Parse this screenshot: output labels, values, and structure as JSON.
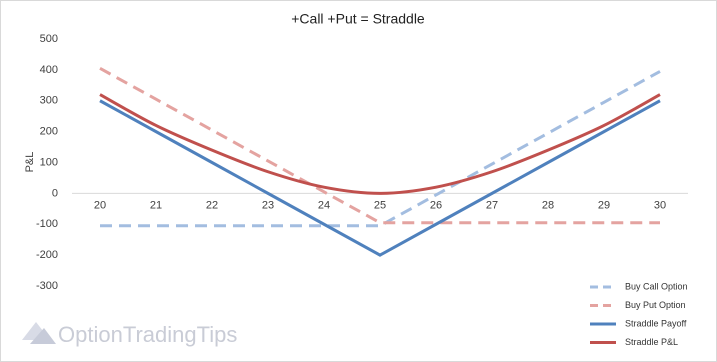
{
  "chart_data": {
    "type": "line",
    "title": "+Call +Put = Straddle",
    "y_label": "P&L",
    "categories": [
      "20",
      "21",
      "22",
      "23",
      "24",
      "25",
      "26",
      "27",
      "28",
      "29",
      "30"
    ],
    "series": [
      {
        "name": "Buy Call Option",
        "color": "#a3bde0",
        "dashed": true,
        "values": [
          -105,
          -105,
          -105,
          -105,
          -105,
          -105,
          -5,
          95,
          195,
          295,
          395
        ]
      },
      {
        "name": "Buy Put Option",
        "color": "#e4a3a0",
        "dashed": true,
        "values": [
          405,
          305,
          205,
          105,
          5,
          -95,
          -95,
          -95,
          -95,
          -95,
          -95
        ]
      },
      {
        "name": "Straddle Payoff",
        "color": "#4f81bd",
        "dashed": false,
        "values": [
          300,
          200,
          100,
          0,
          -100,
          -200,
          -100,
          0,
          100,
          200,
          300
        ]
      },
      {
        "name": "Straddle P&L",
        "color": "#c0504d",
        "dashed": false,
        "smooth": true,
        "values": [
          320,
          220,
          140,
          70,
          20,
          0,
          20,
          70,
          140,
          220,
          320
        ]
      }
    ],
    "ylim": [
      -300,
      500
    ],
    "yticks": [
      -300,
      -200,
      -100,
      0,
      100,
      200,
      300,
      400,
      500
    ],
    "grid": false,
    "legend": "bottom-right"
  },
  "watermark": "OptionTradingTips"
}
